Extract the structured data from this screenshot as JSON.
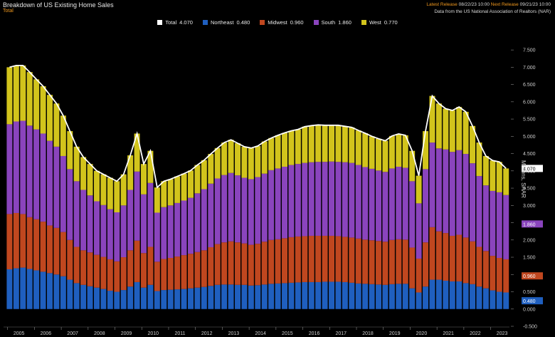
{
  "header": {
    "title": "Breakdown of US Existing Home Sales",
    "subtitle": "Total",
    "latest_release_label": "Latest Release",
    "latest_release_value": "08/22/23 10:00",
    "next_release_label": "Next Release",
    "next_release_value": "09/21/23 10:00",
    "source": "Data from the US National Association of Realtors (NAR)"
  },
  "colors": {
    "total": "#ffffff",
    "northeast": "#1f5fbf",
    "midwest": "#c0471f",
    "south": "#8a44bd",
    "west": "#d2c41c",
    "background": "#000000"
  },
  "chart_data": {
    "type": "bar",
    "stacked": true,
    "title": "",
    "ylabel": "Millions, SAAR",
    "ylim": [
      -0.5,
      7.75
    ],
    "y_ticks": [
      "-0.500",
      "0.000",
      "0.500",
      "1.000",
      "1.500",
      "2.000",
      "2.500",
      "3.000",
      "3.500",
      "4.000",
      "4.500",
      "5.000",
      "5.500",
      "6.000",
      "6.500",
      "7.000",
      "7.500"
    ],
    "x_ticks": [
      "2005",
      "2006",
      "2007",
      "2008",
      "2009",
      "2010",
      "2011",
      "2012",
      "2013",
      "2014",
      "2015",
      "2016",
      "2017",
      "2018",
      "2019",
      "2020",
      "2021",
      "2022",
      "2023"
    ],
    "legend": [
      {
        "name": "Total",
        "value": "4.070",
        "key": "total"
      },
      {
        "name": "Northeast",
        "value": "0.480",
        "key": "northeast"
      },
      {
        "name": "Midwest",
        "value": "0.960",
        "key": "midwest"
      },
      {
        "name": "South",
        "value": "1.860",
        "key": "south"
      },
      {
        "name": "West",
        "value": "0.770",
        "key": "west"
      }
    ],
    "last_value_labels": [
      {
        "series": "total",
        "value": "4.070"
      },
      {
        "series": "south",
        "value": "1.860"
      },
      {
        "series": "midwest",
        "value": "0.960"
      },
      {
        "series": "northeast",
        "value": "0.480"
      }
    ],
    "x": [
      2005.0,
      2005.25,
      2005.5,
      2005.75,
      2006.0,
      2006.25,
      2006.5,
      2006.75,
      2007.0,
      2007.25,
      2007.5,
      2007.75,
      2008.0,
      2008.25,
      2008.5,
      2008.75,
      2009.0,
      2009.25,
      2009.5,
      2009.75,
      2010.0,
      2010.25,
      2010.5,
      2010.75,
      2011.0,
      2011.25,
      2011.5,
      2011.75,
      2012.0,
      2012.25,
      2012.5,
      2012.75,
      2013.0,
      2013.25,
      2013.5,
      2013.75,
      2014.0,
      2014.25,
      2014.5,
      2014.75,
      2015.0,
      2015.25,
      2015.5,
      2015.75,
      2016.0,
      2016.25,
      2016.5,
      2016.75,
      2017.0,
      2017.25,
      2017.5,
      2017.75,
      2018.0,
      2018.25,
      2018.5,
      2018.75,
      2019.0,
      2019.25,
      2019.5,
      2019.75,
      2020.0,
      2020.25,
      2020.5,
      2020.75,
      2021.0,
      2021.25,
      2021.5,
      2021.75,
      2022.0,
      2022.25,
      2022.5,
      2022.75,
      2023.0,
      2023.25,
      2023.5
    ],
    "series": [
      {
        "name": "Northeast",
        "key": "northeast",
        "values": [
          1.15,
          1.18,
          1.2,
          1.16,
          1.12,
          1.08,
          1.04,
          1.0,
          0.95,
          0.85,
          0.75,
          0.7,
          0.66,
          0.62,
          0.58,
          0.53,
          0.5,
          0.55,
          0.65,
          0.78,
          0.62,
          0.7,
          0.52,
          0.55,
          0.56,
          0.57,
          0.58,
          0.6,
          0.62,
          0.64,
          0.67,
          0.7,
          0.71,
          0.71,
          0.7,
          0.7,
          0.68,
          0.69,
          0.71,
          0.73,
          0.74,
          0.75,
          0.76,
          0.77,
          0.78,
          0.78,
          0.78,
          0.79,
          0.79,
          0.79,
          0.78,
          0.76,
          0.74,
          0.73,
          0.72,
          0.71,
          0.7,
          0.72,
          0.73,
          0.73,
          0.6,
          0.48,
          0.65,
          0.85,
          0.85,
          0.82,
          0.8,
          0.8,
          0.75,
          0.72,
          0.65,
          0.6,
          0.54,
          0.5,
          0.48
        ]
      },
      {
        "name": "Midwest",
        "key": "midwest",
        "values": [
          1.6,
          1.6,
          1.55,
          1.5,
          1.48,
          1.45,
          1.38,
          1.35,
          1.28,
          1.15,
          1.05,
          1.0,
          0.98,
          0.95,
          0.93,
          0.91,
          0.88,
          0.95,
          1.05,
          1.2,
          1.0,
          1.1,
          0.85,
          0.9,
          0.92,
          0.95,
          0.98,
          1.0,
          1.03,
          1.06,
          1.12,
          1.18,
          1.22,
          1.25,
          1.23,
          1.2,
          1.18,
          1.2,
          1.24,
          1.27,
          1.28,
          1.3,
          1.32,
          1.33,
          1.33,
          1.34,
          1.34,
          1.33,
          1.33,
          1.32,
          1.31,
          1.31,
          1.3,
          1.28,
          1.27,
          1.26,
          1.25,
          1.28,
          1.29,
          1.28,
          1.18,
          0.98,
          1.28,
          1.52,
          1.4,
          1.38,
          1.32,
          1.35,
          1.32,
          1.24,
          1.15,
          1.08,
          1.0,
          0.98,
          0.96
        ]
      },
      {
        "name": "South",
        "key": "south",
        "values": [
          2.6,
          2.65,
          2.7,
          2.65,
          2.6,
          2.55,
          2.45,
          2.35,
          2.2,
          2.05,
          1.9,
          1.75,
          1.65,
          1.55,
          1.5,
          1.45,
          1.42,
          1.5,
          1.75,
          2.0,
          1.7,
          1.85,
          1.42,
          1.5,
          1.52,
          1.55,
          1.58,
          1.62,
          1.7,
          1.77,
          1.84,
          1.9,
          1.95,
          1.98,
          1.94,
          1.9,
          1.9,
          1.93,
          1.97,
          2.02,
          2.05,
          2.07,
          2.09,
          2.1,
          2.12,
          2.13,
          2.14,
          2.14,
          2.15,
          2.15,
          2.16,
          2.16,
          2.13,
          2.1,
          2.07,
          2.04,
          2.02,
          2.07,
          2.1,
          2.08,
          1.92,
          1.6,
          2.12,
          2.45,
          2.4,
          2.42,
          2.43,
          2.45,
          2.42,
          2.26,
          2.05,
          1.9,
          1.88,
          1.9,
          1.86
        ]
      },
      {
        "name": "West",
        "key": "west",
        "values": [
          1.65,
          1.62,
          1.6,
          1.55,
          1.45,
          1.37,
          1.33,
          1.25,
          1.17,
          1.1,
          1.0,
          0.95,
          0.91,
          0.88,
          0.89,
          0.91,
          0.9,
          0.9,
          1.0,
          1.1,
          0.88,
          0.93,
          0.73,
          0.75,
          0.76,
          0.77,
          0.78,
          0.79,
          0.82,
          0.84,
          0.86,
          0.88,
          0.94,
          0.96,
          0.93,
          0.9,
          0.9,
          0.9,
          0.93,
          0.93,
          0.96,
          0.98,
          0.99,
          1.0,
          1.05,
          1.06,
          1.07,
          1.06,
          1.05,
          1.06,
          1.04,
          1.03,
          1.0,
          0.98,
          0.94,
          0.92,
          0.9,
          0.94,
          0.95,
          0.94,
          0.88,
          0.8,
          1.1,
          1.35,
          1.3,
          1.18,
          1.2,
          1.25,
          1.22,
          1.08,
          0.97,
          0.85,
          0.88,
          0.88,
          0.77
        ]
      }
    ],
    "grid": false,
    "legend_position": "top-center"
  }
}
